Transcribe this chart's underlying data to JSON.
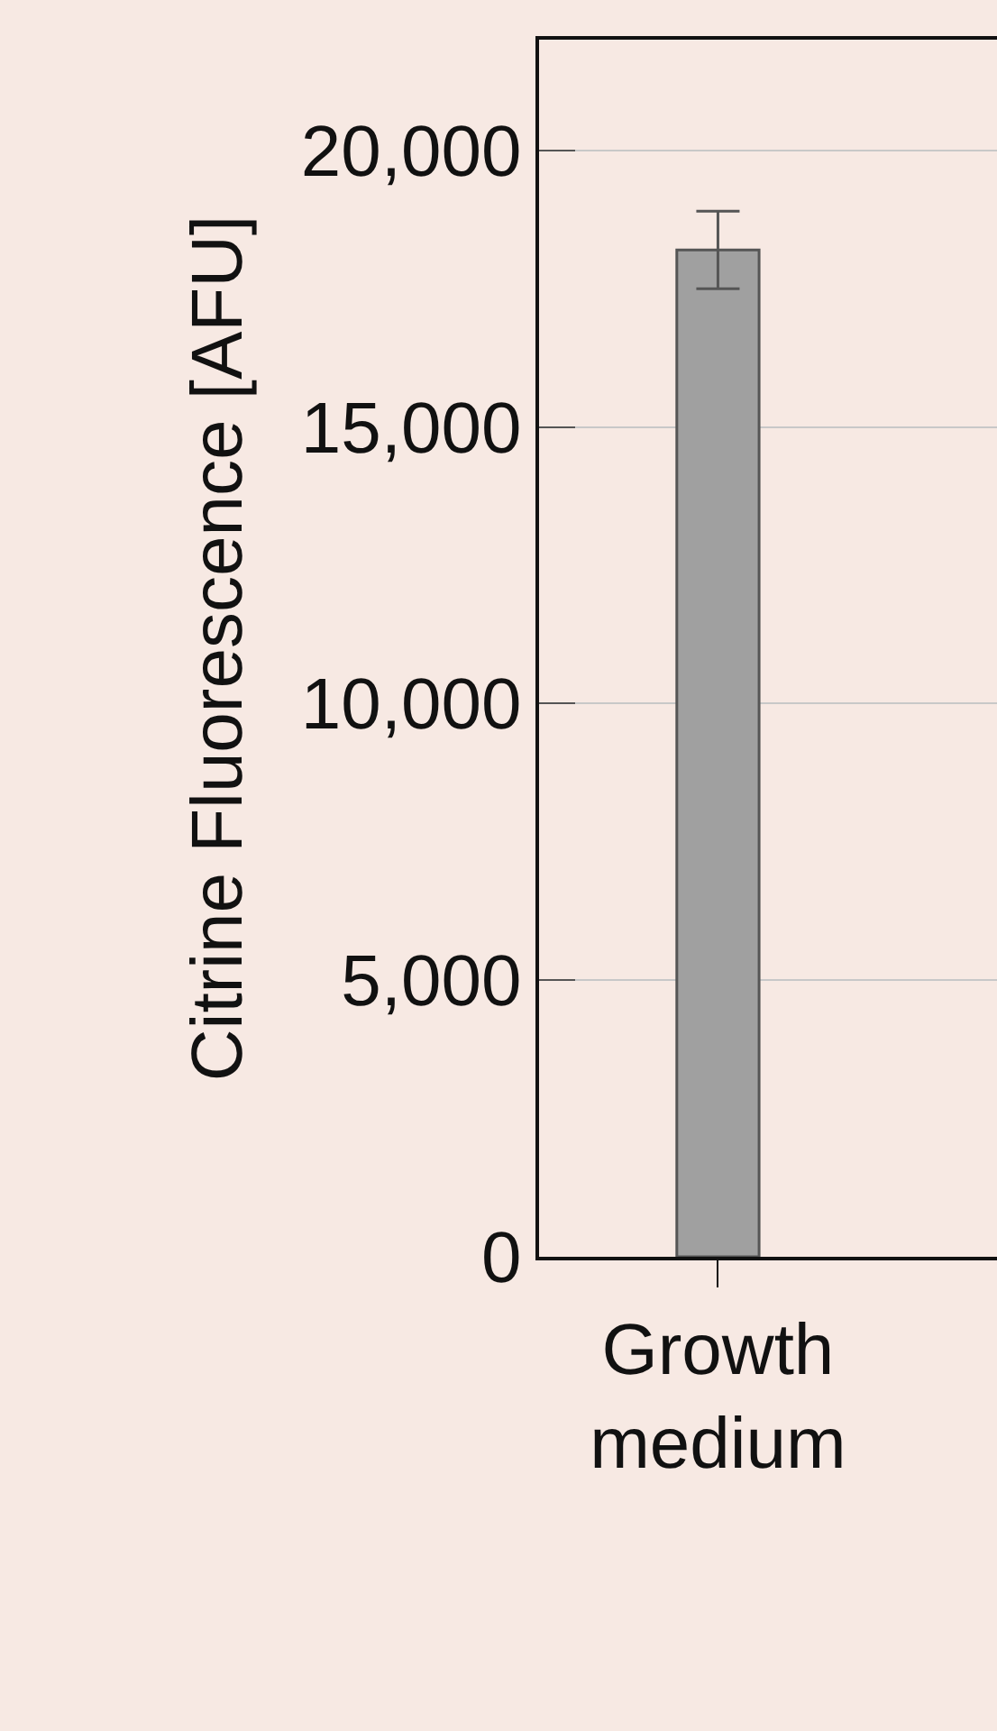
{
  "chart_data": {
    "type": "bar",
    "ylabel": "Citrine Fluorescence [AFU]",
    "categories": [
      "Growth medium"
    ],
    "values": [
      18200
    ],
    "errors": [
      [
        17500,
        18900
      ]
    ],
    "color": "#a0a0a0",
    "ylim": [
      0,
      22000
    ],
    "yticks": [
      0,
      {
        "value": 5000,
        "label": "5,000"
      },
      {
        "value": 10000,
        "label": "10,000"
      },
      {
        "value": 15000,
        "label": "15,000"
      },
      {
        "value": 20000,
        "label": "20,000"
      }
    ],
    "grid": "y"
  }
}
